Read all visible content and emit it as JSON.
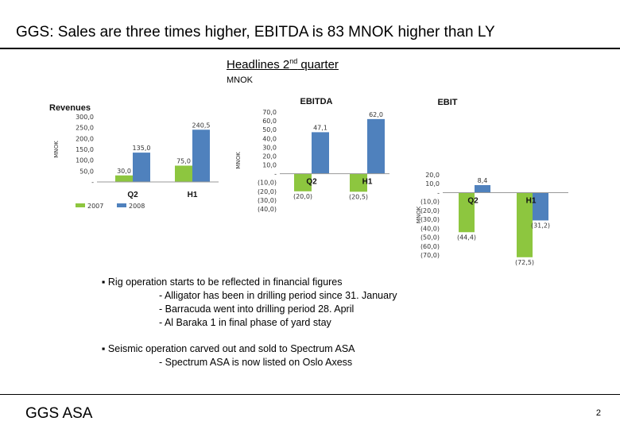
{
  "slide": {
    "title": "GGS: Sales are three times higher, EBITDA is 83 MNOK higher than LY",
    "headline_pre": "Headlines 2",
    "headline_sup": "nd",
    "headline_post": " quarter",
    "unit": "MNOK",
    "footer": "GGS ASA",
    "page_number": "2"
  },
  "colors": {
    "series_2007": "#8dc63f",
    "series_2008": "#4f81bd"
  },
  "chart_data": [
    {
      "type": "bar",
      "title": "Revenues",
      "ylabel": "MNOK",
      "categories": [
        "Q2",
        "H1"
      ],
      "series": [
        {
          "name": "2007",
          "values": [
            30.0,
            75.0
          ],
          "labels": [
            "30,0",
            "75,0"
          ]
        },
        {
          "name": "2008",
          "values": [
            135.0,
            240.5
          ],
          "labels": [
            "135,0",
            "240,5"
          ]
        }
      ],
      "ylim": [
        0,
        300
      ],
      "yticks": [
        "-",
        "50,0",
        "100,0",
        "150,0",
        "200,0",
        "250,0",
        "300,0"
      ],
      "legend": "bottom"
    },
    {
      "type": "bar",
      "title": "EBITDA",
      "ylabel": "MNOK",
      "categories": [
        "Q2",
        "H1"
      ],
      "series": [
        {
          "name": "2007",
          "values": [
            -20.0,
            -20.5
          ],
          "labels": [
            "(20,0)",
            "(20,5)"
          ]
        },
        {
          "name": "2008",
          "values": [
            47.1,
            62.0
          ],
          "labels": [
            "47,1",
            "62,0"
          ]
        }
      ],
      "ylim": [
        -40,
        70
      ],
      "yticks": [
        "(40,0)",
        "(30,0)",
        "(20,0)",
        "(10,0)",
        "-",
        "10,0",
        "20,0",
        "30,0",
        "40,0",
        "50,0",
        "60,0",
        "70,0"
      ],
      "legend": "none"
    },
    {
      "type": "bar",
      "title": "EBIT",
      "ylabel": "MNOK",
      "categories": [
        "Q2",
        "H1"
      ],
      "series": [
        {
          "name": "2007",
          "values": [
            -44.4,
            -72.5
          ],
          "labels": [
            "(44,4)",
            "(72,5)"
          ]
        },
        {
          "name": "2008",
          "values": [
            8.4,
            -31.2
          ],
          "labels": [
            "8,4",
            "(31,2)"
          ]
        }
      ],
      "ylim": [
        -70,
        20
      ],
      "yticks": [
        "(70,0)",
        "(60,0)",
        "(50,0)",
        "(40,0)",
        "(30,0)",
        "(20,0)",
        "(10,0)",
        "-",
        "10,0",
        "20,0"
      ],
      "legend": "none"
    }
  ],
  "bullets": [
    {
      "text": "▪ Rig operation starts to be reflected in financial figures",
      "subs": [
        "- Alligator has been in drilling period since 31. January",
        "- Barracuda went into drilling period 28. April",
        "- Al Baraka 1 in final phase of yard stay"
      ]
    },
    {
      "text": "▪ Seismic operation carved out and sold to Spectrum ASA",
      "subs": [
        "- Spectrum ASA is now listed on Oslo Axess"
      ]
    }
  ]
}
